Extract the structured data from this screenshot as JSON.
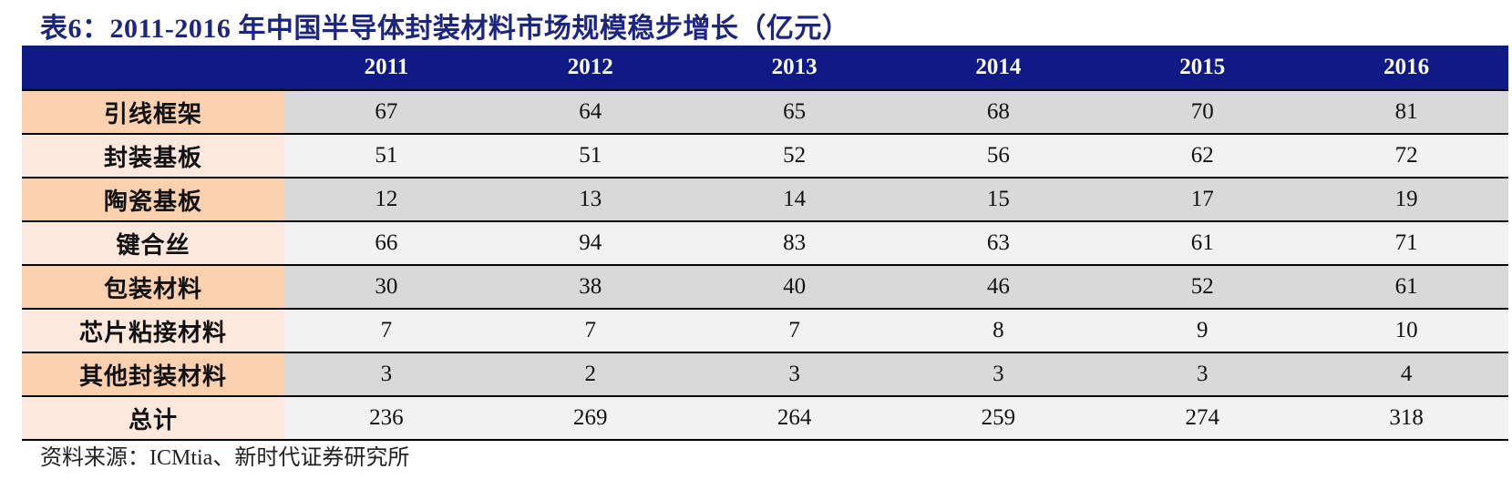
{
  "title": "表6：2011-2016 年中国半导体封装材料市场规模稳步增长（亿元）",
  "table": {
    "header_first": "",
    "years": [
      "2011",
      "2012",
      "2013",
      "2014",
      "2015",
      "2016"
    ],
    "rows": [
      {
        "label": "引线框架",
        "values": [
          "67",
          "64",
          "65",
          "68",
          "70",
          "81"
        ]
      },
      {
        "label": "封装基板",
        "values": [
          "51",
          "51",
          "52",
          "56",
          "62",
          "72"
        ]
      },
      {
        "label": "陶瓷基板",
        "values": [
          "12",
          "13",
          "14",
          "15",
          "17",
          "19"
        ]
      },
      {
        "label": "键合丝",
        "values": [
          "66",
          "94",
          "83",
          "63",
          "61",
          "71"
        ]
      },
      {
        "label": "包装材料",
        "values": [
          "30",
          "38",
          "40",
          "46",
          "52",
          "61"
        ]
      },
      {
        "label": "芯片粘接材料",
        "values": [
          "7",
          "7",
          "7",
          "8",
          "9",
          "10"
        ]
      },
      {
        "label": "其他封装材料",
        "values": [
          "3",
          "2",
          "3",
          "3",
          "3",
          "4"
        ]
      },
      {
        "label": "总计",
        "values": [
          "236",
          "269",
          "264",
          "259",
          "274",
          "318"
        ]
      }
    ]
  },
  "source": "资料来源：ICMtia、新时代证券研究所",
  "colors": {
    "title": "#1c2580",
    "header_bg": "#101a86",
    "label_bg_dark": "#fbd1b0",
    "label_bg_light": "#fde8dd",
    "value_bg_dark": "#d9d9d9",
    "value_bg_light": "#f2f2f2"
  }
}
